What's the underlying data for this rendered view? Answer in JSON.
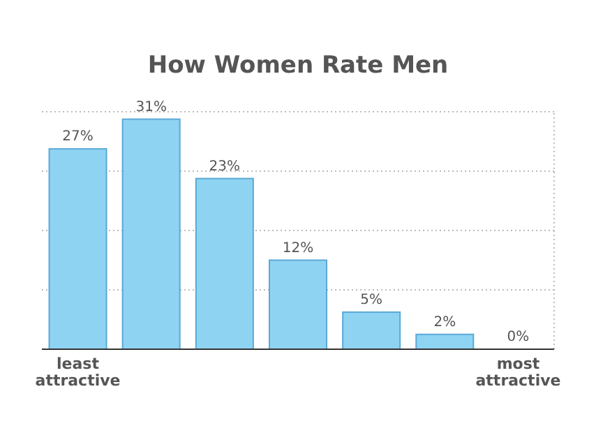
{
  "chart_data": {
    "type": "bar",
    "title": "How Women Rate Men",
    "categories": [
      "least attractive",
      null,
      null,
      null,
      null,
      null,
      "most attractive"
    ],
    "values": [
      27,
      31,
      23,
      12,
      5,
      2,
      0
    ],
    "value_labels": [
      "27%",
      "31%",
      "23%",
      "12%",
      "5%",
      "2%",
      "0%"
    ],
    "color": "#8fd3f2",
    "ylim": [
      0,
      32
    ],
    "yticks": [
      {
        "value": 0,
        "label": null
      },
      {
        "value": 8,
        "label": null
      },
      {
        "value": 16,
        "label": null
      },
      {
        "value": 24,
        "label": null
      },
      {
        "value": 32,
        "label": null
      }
    ],
    "grid": "y"
  }
}
